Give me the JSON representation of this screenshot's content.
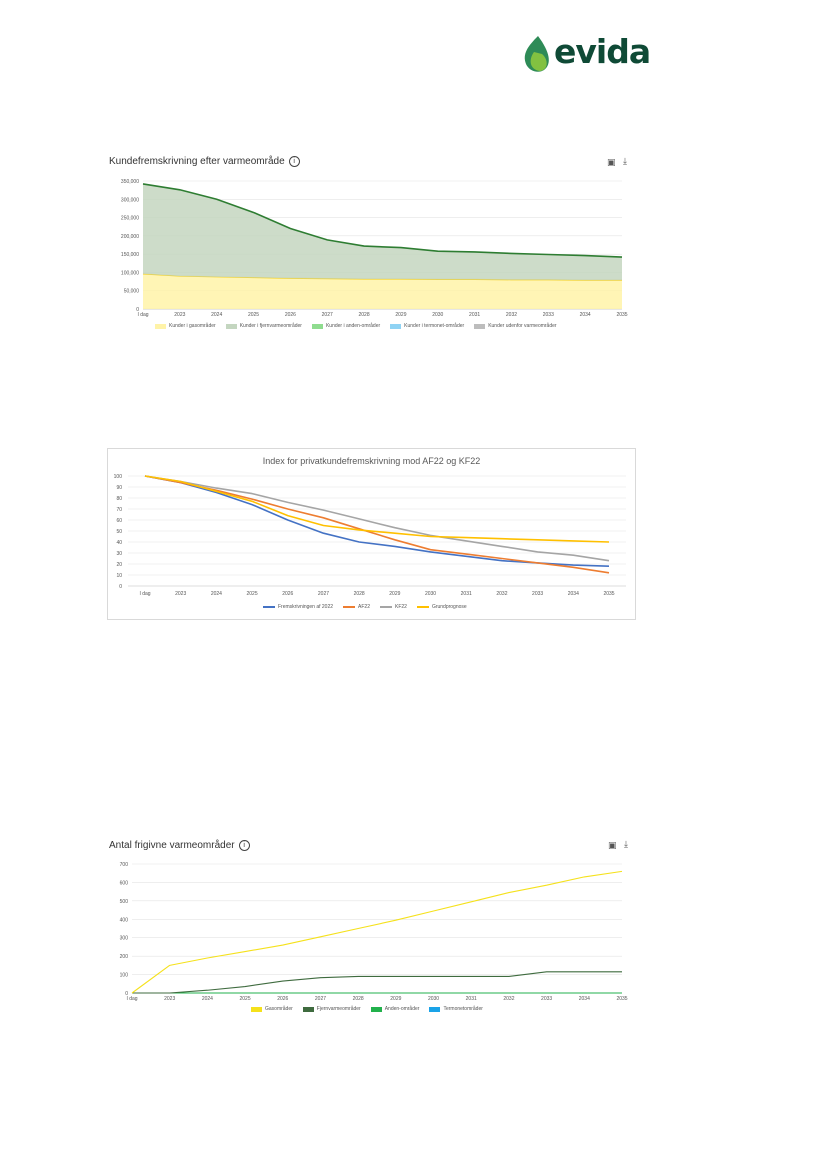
{
  "logo": {
    "text": "evida",
    "colors": {
      "dark": "#0f4a36",
      "green": "#2e8b57",
      "light": "#8cc63f"
    }
  },
  "chart1": {
    "title": "Kundefremskrivning efter varmeområde",
    "tools": {
      "camera": "camera-icon",
      "download": "download-icon"
    },
    "chart_data": {
      "type": "area",
      "title": "Kundefremskrivning efter varmeområde",
      "categories": [
        "I dag",
        "2023",
        "2024",
        "2025",
        "2026",
        "2027",
        "2028",
        "2029",
        "2030",
        "2031",
        "2032",
        "2033",
        "2034",
        "2035"
      ],
      "ylim": [
        0,
        350000
      ],
      "yticks": [
        "0",
        "50,000",
        "100,000",
        "150,000",
        "200,000",
        "250,000",
        "300,000",
        "350,000"
      ],
      "stacked": true,
      "series": [
        {
          "name": "Kunder i gasområder",
          "color": "#fff3a8",
          "line": "#f2d230",
          "values": [
            96000,
            90000,
            88000,
            86000,
            84000,
            83000,
            82000,
            82000,
            81000,
            81000,
            80000,
            80000,
            79000,
            79000
          ]
        },
        {
          "name": "Kunder i fjernvarmeområder",
          "color": "#c4d6c0",
          "line": "#2e7d32",
          "values": [
            246000,
            236000,
            212000,
            178000,
            136000,
            106000,
            90000,
            86000,
            77000,
            75000,
            72000,
            69000,
            67000,
            63000
          ]
        },
        {
          "name": "Kunder i anden-områder",
          "color": "#8fdc8f",
          "line": "#2ca02c",
          "values": [
            0,
            0,
            0,
            0,
            0,
            0,
            0,
            0,
            0,
            0,
            0,
            0,
            0,
            0
          ]
        },
        {
          "name": "Kunder i termonet-områder",
          "color": "#8fd3f4",
          "line": "#1f9bd7",
          "values": [
            0,
            0,
            0,
            0,
            0,
            0,
            0,
            0,
            0,
            0,
            0,
            0,
            0,
            0
          ]
        },
        {
          "name": "Kunder udenfor varmeområder",
          "color": "#bdbdbd",
          "line": "#7f7f7f",
          "values": [
            0,
            0,
            0,
            0,
            0,
            0,
            0,
            0,
            0,
            0,
            0,
            0,
            0,
            0
          ]
        }
      ],
      "grid": true,
      "legend": "bottom"
    }
  },
  "chart2": {
    "chart_data": {
      "type": "line",
      "title": "Index for privatkundefremskrivning mod AF22 og KF22",
      "categories": [
        "I dag",
        "2023",
        "2024",
        "2025",
        "2026",
        "2027",
        "2028",
        "2029",
        "2030",
        "2031",
        "2032",
        "2033",
        "2034",
        "2035"
      ],
      "ylim": [
        0,
        100
      ],
      "yticks": [
        "0",
        "10",
        "20",
        "30",
        "40",
        "50",
        "60",
        "70",
        "80",
        "90",
        "100"
      ],
      "series": [
        {
          "name": "Fremskrivningen af 2022",
          "color": "#4472c4",
          "values": [
            100,
            94,
            85,
            74,
            60,
            48,
            40,
            36,
            31,
            27,
            23,
            21,
            19,
            18
          ]
        },
        {
          "name": "AF22",
          "color": "#ed7d31",
          "values": [
            100,
            94,
            87,
            79,
            70,
            62,
            52,
            42,
            33,
            29,
            25,
            21,
            17,
            12
          ]
        },
        {
          "name": "KF22",
          "color": "#a5a5a5",
          "values": [
            100,
            95,
            89,
            84,
            76,
            69,
            61,
            53,
            46,
            41,
            36,
            31,
            28,
            23
          ]
        },
        {
          "name": "Grundprognose",
          "color": "#ffc000",
          "values": [
            100,
            95,
            86,
            77,
            64,
            55,
            51,
            48,
            45,
            44,
            43,
            42,
            41,
            40
          ]
        }
      ],
      "grid": true,
      "legend": "bottom"
    }
  },
  "chart3": {
    "title": "Antal frigivne varmeområder",
    "tools": {
      "camera": "camera-icon",
      "download": "download-icon"
    },
    "chart_data": {
      "type": "line",
      "title": "Antal frigivne varmeområder",
      "categories": [
        "I dag",
        "2023",
        "2024",
        "2025",
        "2026",
        "2027",
        "2028",
        "2029",
        "2030",
        "2031",
        "2032",
        "2033",
        "2034",
        "2035"
      ],
      "ylim": [
        0,
        700
      ],
      "yticks": [
        "0",
        "100",
        "200",
        "300",
        "400",
        "500",
        "600",
        "700"
      ],
      "series": [
        {
          "name": "Gasområder",
          "color": "#f5e11b",
          "values": [
            0,
            150,
            190,
            225,
            260,
            305,
            350,
            395,
            445,
            495,
            545,
            585,
            630,
            660
          ]
        },
        {
          "name": "Fjernvarmeområder",
          "color": "#3f6b3f",
          "values": [
            0,
            0,
            15,
            35,
            65,
            83,
            90,
            90,
            90,
            90,
            90,
            115,
            115,
            115
          ]
        },
        {
          "name": "Anden-områder",
          "color": "#22b14c",
          "values": [
            0,
            0,
            0,
            0,
            0,
            0,
            0,
            0,
            0,
            0,
            0,
            0,
            0,
            0
          ]
        },
        {
          "name": "Termonetområder",
          "color": "#1aa3e8",
          "values": [
            0,
            0,
            0,
            0,
            0,
            0,
            0,
            0,
            0,
            0,
            0,
            0,
            0,
            0
          ]
        }
      ],
      "grid": true,
      "legend": "bottom"
    }
  }
}
